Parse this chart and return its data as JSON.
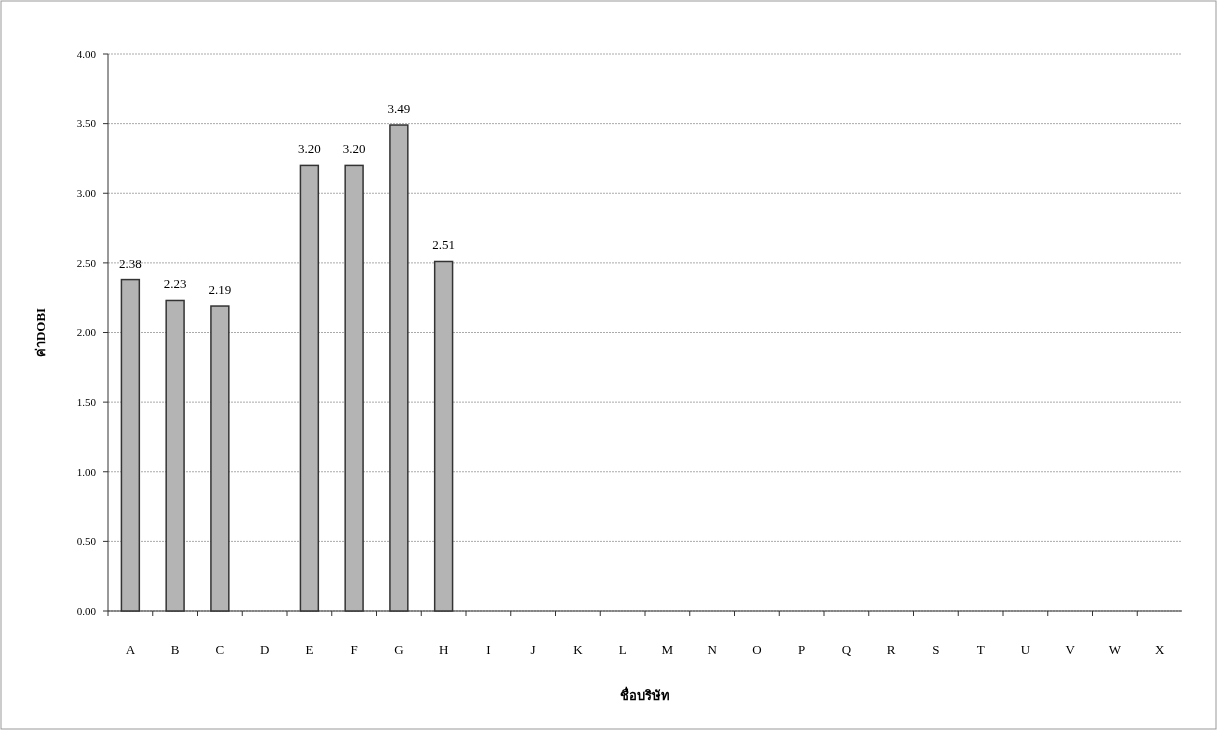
{
  "chart_data": {
    "type": "bar",
    "xlabel": "ชื่อบริษัท",
    "ylabel": "ค่าDOBI",
    "categories": [
      "A",
      "B",
      "C",
      "D",
      "E",
      "F",
      "G",
      "H",
      "I",
      "J",
      "K",
      "L",
      "M",
      "N",
      "O",
      "P",
      "Q",
      "R",
      "S",
      "T",
      "U",
      "V",
      "W",
      "X"
    ],
    "values": [
      2.38,
      2.23,
      2.19,
      null,
      3.2,
      3.2,
      3.49,
      2.51,
      null,
      null,
      null,
      null,
      null,
      null,
      null,
      null,
      null,
      null,
      null,
      null,
      null,
      null,
      null,
      null
    ],
    "value_labels": [
      "2.38",
      "2.23",
      "2.19",
      null,
      "3.20",
      "3.20",
      "3.49",
      "2.51",
      null,
      null,
      null,
      null,
      null,
      null,
      null,
      null,
      null,
      null,
      null,
      null,
      null,
      null,
      null,
      null
    ],
    "color": "#b4b4b4",
    "ylim": [
      0,
      4
    ],
    "yticks": [
      {
        "value": 0,
        "label": "0.00"
      },
      {
        "value": 0.5,
        "label": "0.50"
      },
      {
        "value": 1,
        "label": "1.00"
      },
      {
        "value": 1.5,
        "label": "1.50"
      },
      {
        "value": 2,
        "label": "2.00"
      },
      {
        "value": 2.5,
        "label": "2.50"
      },
      {
        "value": 3,
        "label": "3.00"
      },
      {
        "value": 3.5,
        "label": "3.50"
      },
      {
        "value": 4,
        "label": "4.00"
      }
    ],
    "grid": "y"
  }
}
